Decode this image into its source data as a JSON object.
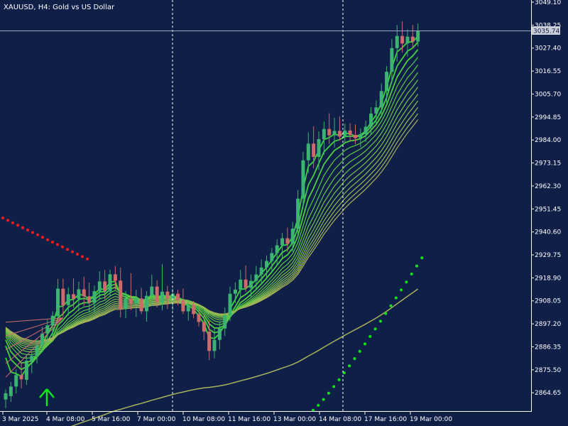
{
  "chart_data": {
    "type": "candlestick",
    "title": "XAUUSD, H4:  Gold vs US Dollar",
    "current_price": "3035.74",
    "ylim": [
      2856,
      3049.1
    ],
    "y_ticks": [
      "3049.10",
      "3038.25",
      "3027.40",
      "3016.55",
      "3005.70",
      "2994.85",
      "2984.00",
      "2973.15",
      "2962.30",
      "2951.45",
      "2940.60",
      "2929.75",
      "2918.90",
      "2908.05",
      "2897.20",
      "2886.35",
      "2875.50",
      "2864.65"
    ],
    "x_ticks": [
      "3 Mar 2025",
      "4 Mar 08:00",
      "5 Mar 16:00",
      "7 Mar 00:00",
      "10 Mar 08:00",
      "11 Mar 16:00",
      "13 Mar 00:00",
      "14 Mar 08:00",
      "17 Mar 16:00",
      "19 Mar 00:00"
    ],
    "vertical_separators": [
      "7 Mar 00:00",
      "14 Mar 08:00"
    ],
    "colors": {
      "background": "#0f1f47",
      "bull": "#3cb371",
      "bear": "#cd6b6b",
      "grid_line": "#9aa6bf",
      "red_dots": "#ff1a1a",
      "green_dots": "#14e614",
      "arrow": "#14e614",
      "ma_fast": "#3bd43b",
      "ma_slow": "#a8b35a",
      "ma_red": "#d06f6f"
    },
    "candles": [
      [
        2861.5,
        2866.2,
        2857.4,
        2864.4
      ],
      [
        2863.1,
        2869.8,
        2860.3,
        2867.6
      ],
      [
        2867.6,
        2875.7,
        2864.3,
        2873.0
      ],
      [
        2873.0,
        2878.9,
        2866.7,
        2871.0
      ],
      [
        2870.8,
        2882.3,
        2868.4,
        2879.8
      ],
      [
        2879.8,
        2883.6,
        2873.9,
        2882.1
      ],
      [
        2882.1,
        2890.0,
        2878.5,
        2886.9
      ],
      [
        2887.2,
        2895.8,
        2884.5,
        2892.6
      ],
      [
        2892.6,
        2899.1,
        2888.0,
        2896.5
      ],
      [
        2896.5,
        2903.1,
        2891.4,
        2901.0
      ],
      [
        2900.8,
        2918.4,
        2897.5,
        2913.8
      ],
      [
        2913.8,
        2918.5,
        2900.4,
        2906.0
      ],
      [
        2906.0,
        2914.4,
        2901.0,
        2911.2
      ],
      [
        2911.2,
        2918.6,
        2904.7,
        2909.0
      ],
      [
        2909.0,
        2917.1,
        2903.2,
        2913.5
      ],
      [
        2913.5,
        2919.5,
        2905.8,
        2910.2
      ],
      [
        2910.2,
        2916.7,
        2903.1,
        2907.1
      ],
      [
        2907.1,
        2915.3,
        2902.1,
        2912.6
      ],
      [
        2912.6,
        2922.0,
        2908.5,
        2917.2
      ],
      [
        2917.2,
        2922.6,
        2908.8,
        2912.5
      ],
      [
        2912.5,
        2922.8,
        2909.9,
        2920.6
      ],
      [
        2920.6,
        2924.5,
        2913.4,
        2917.6
      ],
      [
        2917.6,
        2923.7,
        2900.3,
        2904.2
      ],
      [
        2904.2,
        2912.7,
        2900.0,
        2909.0
      ],
      [
        2909.0,
        2921.1,
        2903.7,
        2906.7
      ],
      [
        2906.7,
        2913.2,
        2900.4,
        2909.2
      ],
      [
        2909.2,
        2914.2,
        2901.8,
        2903.1
      ],
      [
        2903.1,
        2912.6,
        2898.2,
        2910.4
      ],
      [
        2910.4,
        2920.4,
        2905.5,
        2914.8
      ],
      [
        2914.8,
        2917.7,
        2904.9,
        2907.5
      ],
      [
        2907.5,
        2925.4,
        2903.6,
        2912.4
      ],
      [
        2912.4,
        2915.1,
        2904.2,
        2909.0
      ],
      [
        2909.0,
        2913.9,
        2903.6,
        2911.4
      ],
      [
        2911.4,
        2913.4,
        2906.0,
        2908.3
      ],
      [
        2908.3,
        2913.9,
        2901.8,
        2903.1
      ],
      [
        2903.1,
        2907.6,
        2898.7,
        2906.0
      ],
      [
        2906.0,
        2907.9,
        2899.8,
        2901.8
      ],
      [
        2901.8,
        2905.2,
        2896.0,
        2898.1
      ],
      [
        2898.1,
        2901.9,
        2889.5,
        2893.5
      ],
      [
        2893.5,
        2898.6,
        2880.1,
        2884.4
      ],
      [
        2884.4,
        2895.4,
        2880.9,
        2889.6
      ],
      [
        2889.6,
        2898.3,
        2885.1,
        2895.0
      ],
      [
        2895.0,
        2904.9,
        2891.5,
        2901.2
      ],
      [
        2901.2,
        2914.8,
        2898.5,
        2911.4
      ],
      [
        2911.4,
        2916.8,
        2907.1,
        2913.4
      ],
      [
        2913.4,
        2922.6,
        2909.6,
        2918.1
      ],
      [
        2918.1,
        2924.8,
        2912.4,
        2914.2
      ],
      [
        2914.2,
        2920.5,
        2909.5,
        2917.5
      ],
      [
        2917.5,
        2924.5,
        2913.2,
        2920.5
      ],
      [
        2920.5,
        2927.6,
        2915.8,
        2923.8
      ],
      [
        2923.8,
        2929.5,
        2918.2,
        2926.9
      ],
      [
        2926.9,
        2933.1,
        2921.5,
        2930.6
      ],
      [
        2930.6,
        2937.1,
        2924.7,
        2934.3
      ],
      [
        2934.3,
        2940.1,
        2928.4,
        2937.6
      ],
      [
        2937.6,
        2942.6,
        2931.2,
        2935.0
      ],
      [
        2935.0,
        2945.3,
        2931.3,
        2942.1
      ],
      [
        2942.1,
        2960.4,
        2938.1,
        2956.3
      ],
      [
        2956.3,
        2978.4,
        2951.6,
        2974.4
      ],
      [
        2974.4,
        2987.6,
        2968.4,
        2982.3
      ],
      [
        2982.3,
        2990.5,
        2970.7,
        2976.0
      ],
      [
        2976.0,
        2988.1,
        2969.8,
        2984.4
      ],
      [
        2984.4,
        2992.7,
        2977.0,
        2989.2
      ],
      [
        2989.2,
        2996.6,
        2982.0,
        2986.2
      ],
      [
        2986.2,
        2994.5,
        2980.4,
        2988.3
      ],
      [
        2988.3,
        2995.2,
        2983.8,
        2985.6
      ],
      [
        2985.6,
        2991.8,
        2982.5,
        2988.5
      ],
      [
        2988.5,
        2991.9,
        2983.3,
        2986.4
      ],
      [
        2986.4,
        2991.4,
        2982.0,
        2984.9
      ],
      [
        2984.9,
        2989.5,
        2980.6,
        2986.8
      ],
      [
        2986.8,
        2993.1,
        2983.1,
        2990.3
      ],
      [
        2990.3,
        2999.5,
        2986.4,
        2996.5
      ],
      [
        2996.5,
        3002.7,
        2991.8,
        2999.4
      ],
      [
        2999.4,
        3010.7,
        2994.8,
        3007.1
      ],
      [
        3007.1,
        3018.9,
        3001.6,
        3016.2
      ],
      [
        3016.2,
        3031.7,
        3011.5,
        3027.4
      ],
      [
        3027.4,
        3038.3,
        3020.9,
        3033.1
      ],
      [
        3033.1,
        3040.0,
        3025.2,
        3029.6
      ],
      [
        3029.6,
        3036.2,
        3023.4,
        3032.8
      ],
      [
        3032.8,
        3038.3,
        3027.6,
        3030.5
      ],
      [
        3030.5,
        3039.0,
        3028.2,
        3035.7
      ]
    ]
  }
}
